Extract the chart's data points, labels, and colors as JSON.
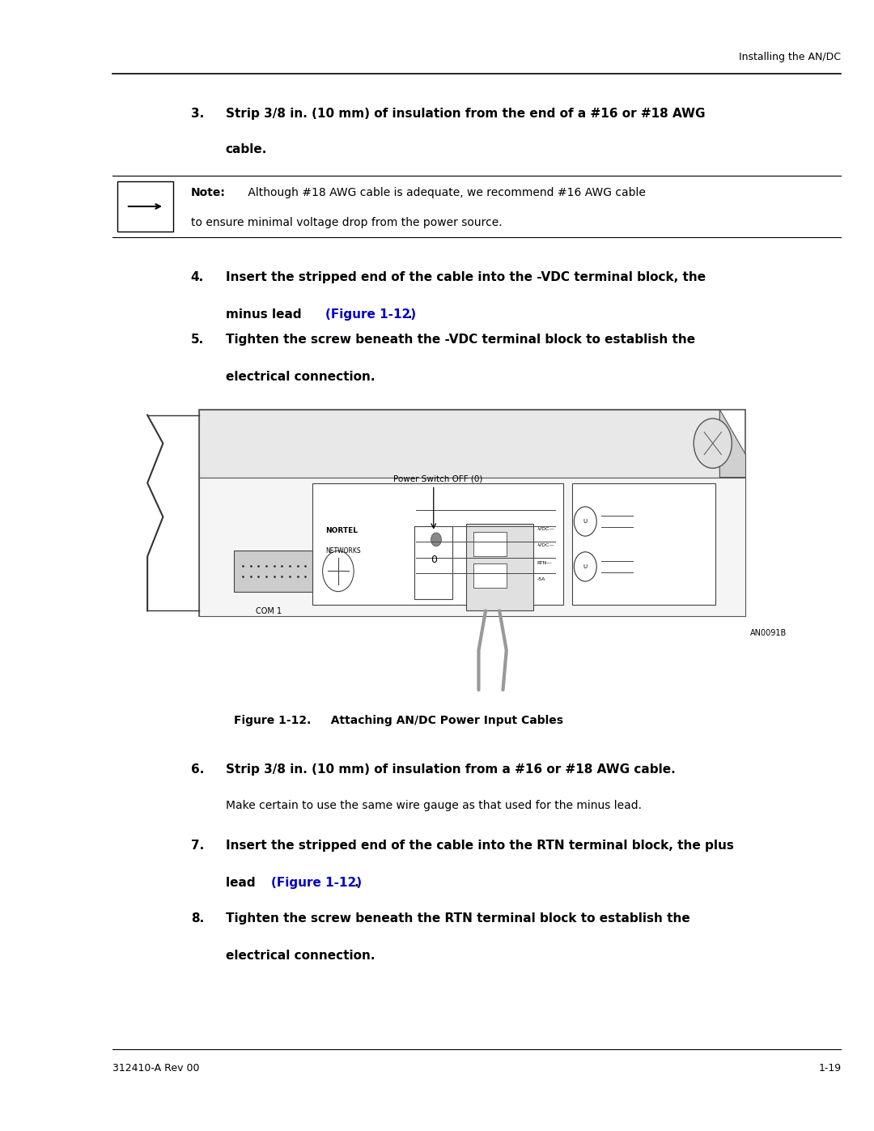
{
  "page_width": 10.8,
  "page_height": 13.97,
  "bg_color": "#ffffff",
  "header_text": "Installing the AN/DC",
  "footer_left": "312410-A Rev 00",
  "footer_right": "1-19",
  "note_bold": "Note:",
  "note_text": " Although #18 AWG cable is adequate, we recommend #16 AWG cable",
  "note_text2": "to ensure minimal voltage drop from the power source.",
  "step4_link": "(Figure 1-12)",
  "step7_link": "(Figure 1-12)",
  "figure_caption": "Figure 1-12.     Attaching AN/DC Power Input Cables",
  "link_color": "#0000cc",
  "text_color": "#000000",
  "line_color": "#000000"
}
